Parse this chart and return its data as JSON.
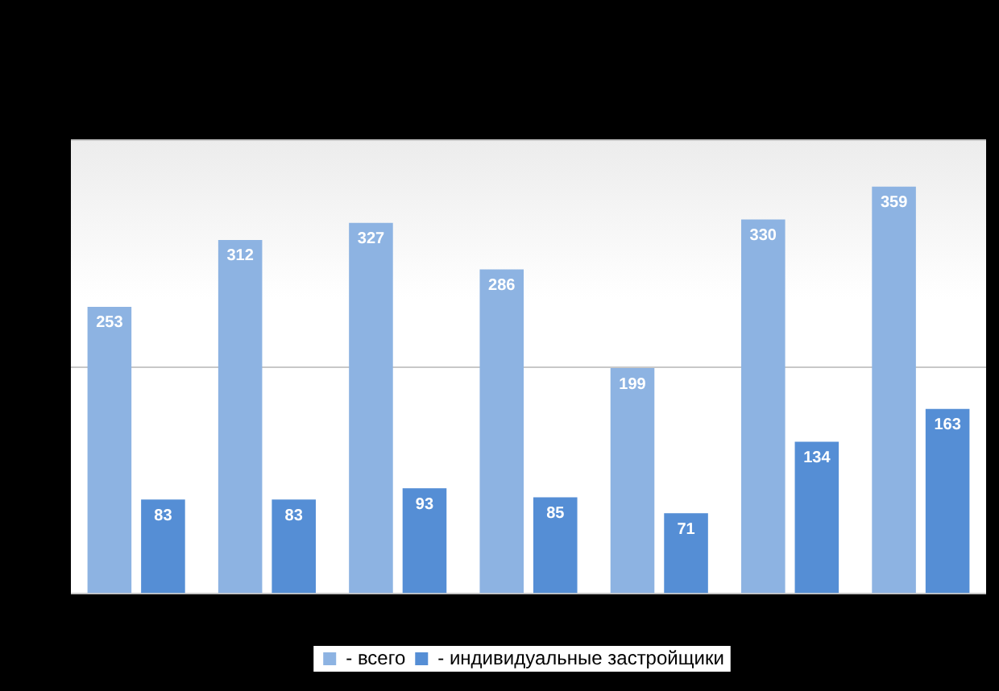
{
  "chart_data": {
    "type": "bar",
    "categories": [
      null,
      null,
      null,
      null,
      null,
      null,
      null
    ],
    "series": [
      {
        "name": "- всего",
        "color": "#8db3e2",
        "values": [
          253,
          312,
          327,
          286,
          199,
          330,
          359
        ]
      },
      {
        "name": "- индивидуальные застройщики",
        "color": "#558ed5",
        "values": [
          83,
          83,
          93,
          85,
          71,
          134,
          163
        ]
      }
    ],
    "ylim": [
      0,
      400
    ],
    "yticks": [
      {
        "value": 0,
        "label": null
      },
      {
        "value": 200,
        "label": null
      },
      {
        "value": 400,
        "label": null
      }
    ],
    "grid": "y",
    "data_labels": true,
    "legend": "bottom"
  }
}
